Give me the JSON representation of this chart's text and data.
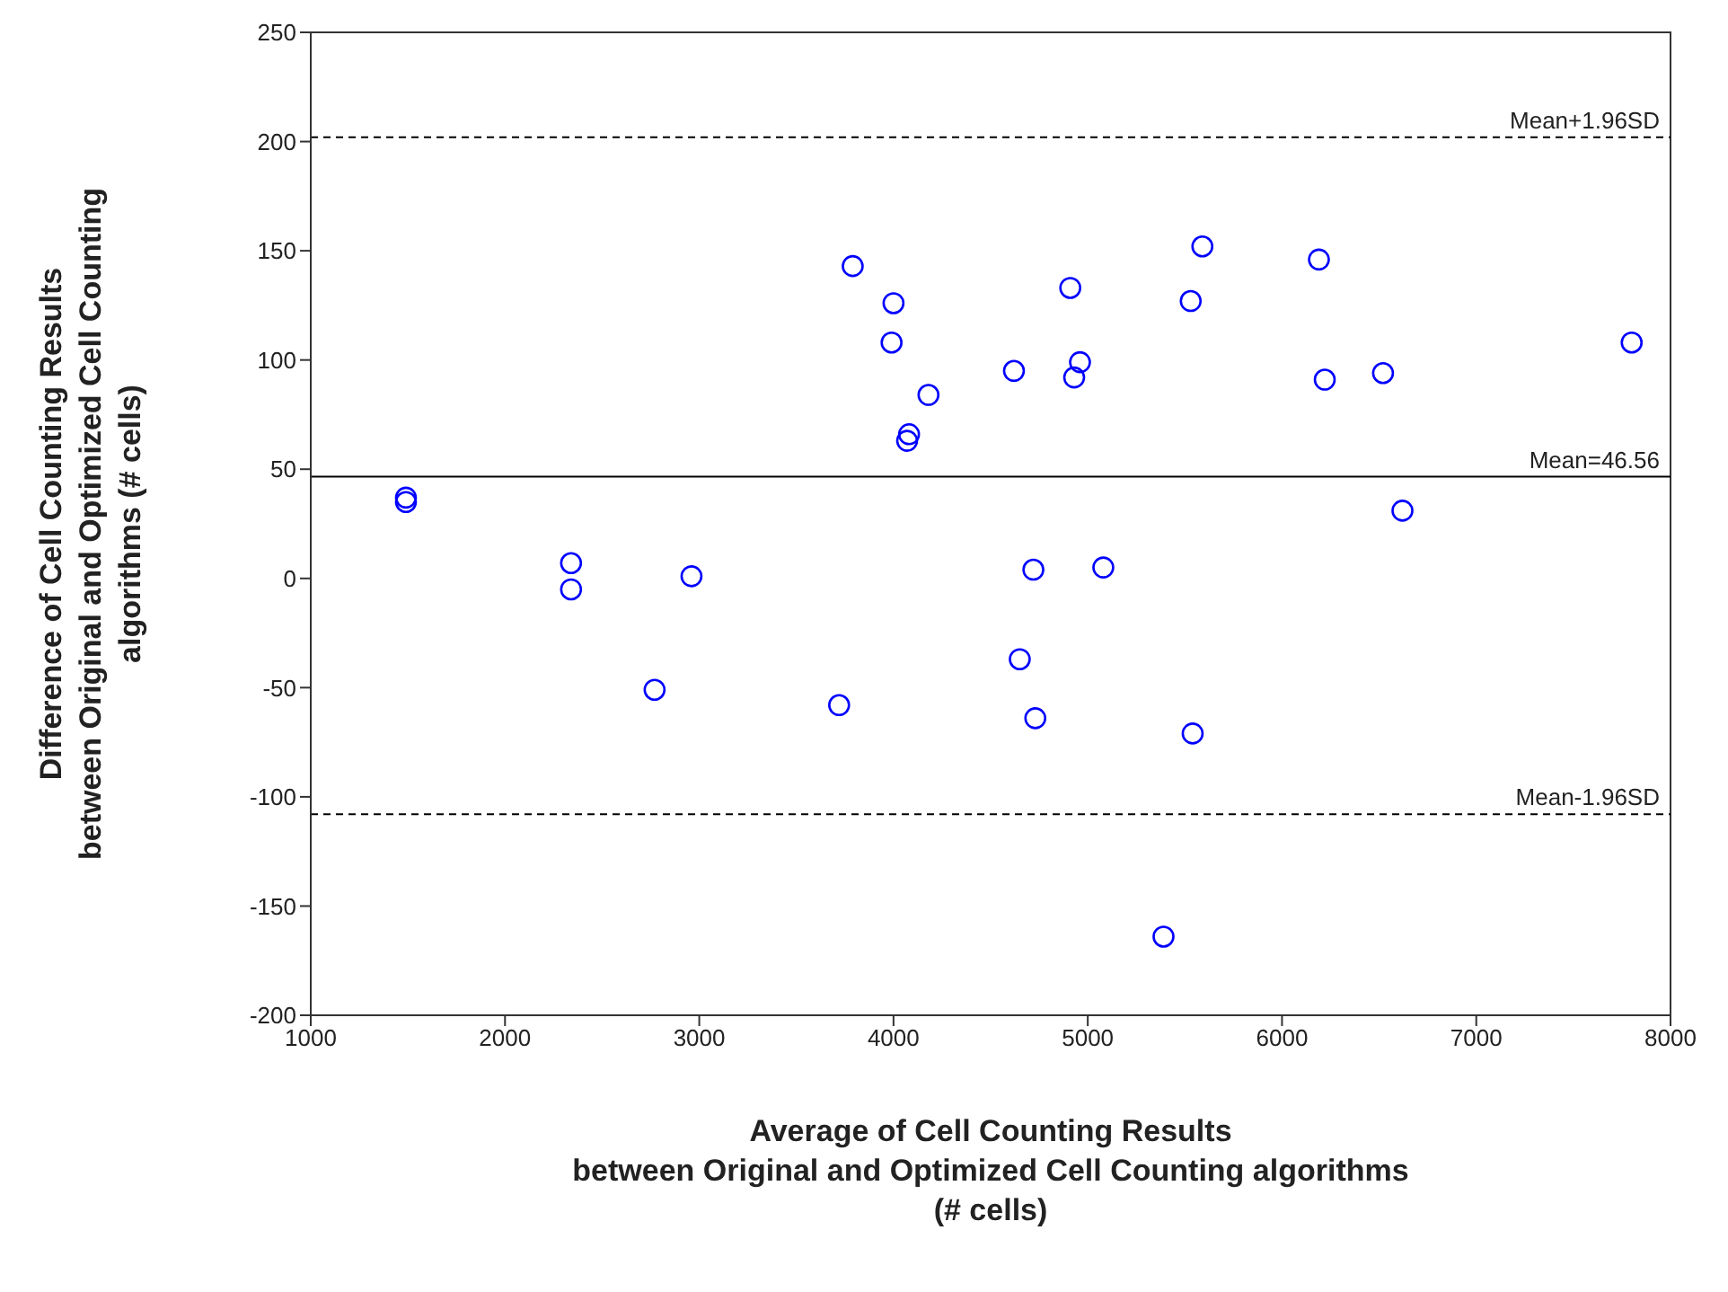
{
  "chart_data": {
    "type": "scatter",
    "xlabel": "Average of Cell Counting Results\nbetween Original and Optimized Cell Counting algorithms\n(# cells)",
    "ylabel": "Difference of Cell Counting Results\nbetween Original and Optimized Cell Counting\nalgorithms (# cells)",
    "xlim": [
      1000,
      8000
    ],
    "xticks": [
      1000,
      2000,
      3000,
      4000,
      5000,
      6000,
      7000,
      8000
    ],
    "ylim": [
      -200,
      250
    ],
    "yticks": [
      -200,
      -150,
      -100,
      -50,
      0,
      50,
      100,
      150,
      200,
      250
    ],
    "grid": false,
    "legend": false,
    "marker": "circle",
    "series": [
      {
        "color": "#0000ff",
        "x": [
          1490,
          1490,
          2340,
          2340,
          2770,
          2960,
          3720,
          3790,
          3990,
          4000,
          4070,
          4080,
          4180,
          4620,
          4650,
          4720,
          4730,
          4910,
          4930,
          4960,
          5080,
          5390,
          5530,
          5540,
          5590,
          6190,
          6220,
          6520,
          6620,
          7800
        ],
        "values": [
          37,
          35,
          7,
          -5,
          -51,
          1,
          -58,
          143,
          108,
          126,
          63,
          66,
          84,
          95,
          -37,
          4,
          -64,
          133,
          92,
          99,
          5,
          -164,
          127,
          -71,
          152,
          146,
          91,
          94,
          31,
          108
        ]
      }
    ],
    "ref_lines": [
      {
        "axis": "y",
        "value": 202,
        "label": "Mean+1.96SD",
        "color": "#000000",
        "line_style": "dashed"
      },
      {
        "axis": "y",
        "value": 46.56,
        "label": "Mean=46.56",
        "color": "#000000",
        "line_style": "solid"
      },
      {
        "axis": "y",
        "value": -108,
        "label": "Mean-1.96SD",
        "color": "#000000",
        "line_style": "dashed"
      }
    ]
  }
}
